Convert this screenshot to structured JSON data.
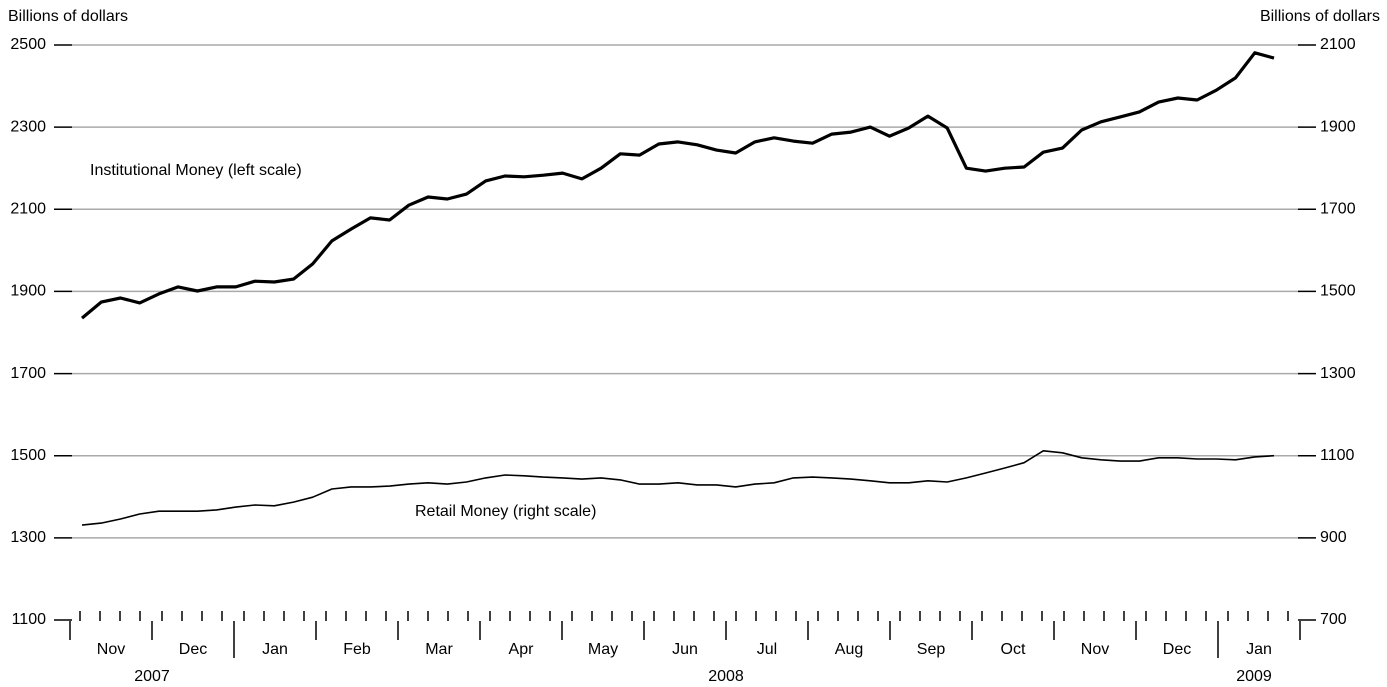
{
  "chart_data": {
    "type": "line",
    "y_label": "Billions of dollars",
    "y2_label": "Billions of dollars",
    "annotations": [
      "Institutional Money (left scale)",
      "Retail Money (right scale)"
    ],
    "categories": [
      null,
      null,
      null,
      null,
      null,
      null,
      null,
      null,
      null,
      null,
      null,
      null,
      null,
      null,
      null,
      null,
      null,
      null,
      null,
      null,
      null,
      null,
      null,
      null,
      null,
      null,
      null,
      null,
      null,
      null,
      null,
      null,
      null,
      null,
      null,
      null,
      null,
      null,
      null,
      null,
      null,
      null,
      null,
      null,
      null,
      null,
      null,
      null,
      null,
      null,
      null,
      null,
      null,
      null,
      null,
      null,
      null,
      null,
      null,
      null,
      null,
      null,
      null
    ],
    "x_months": [
      "Nov",
      "Dec",
      "Jan",
      "Feb",
      "Mar",
      "Apr",
      "May",
      "Jun",
      "Jul",
      "Aug",
      "Sep",
      "Oct",
      "Nov",
      "Dec",
      "Jan"
    ],
    "x_years": [
      "2007",
      "2008",
      "2009"
    ],
    "series": [
      {
        "name": "Institutional Money (left scale)",
        "color": "#000000",
        "axis": "y",
        "values": [
          1835,
          1874,
          1884,
          1872,
          1894,
          1911,
          1901,
          1911,
          1911,
          1925,
          1923,
          1930,
          1967,
          2023,
          2052,
          2079,
          2074,
          2110,
          2130,
          2125,
          2137,
          2169,
          2181,
          2179,
          2183,
          2188,
          2174,
          2200,
          2235,
          2232,
          2259,
          2264,
          2257,
          2244,
          2237,
          2264,
          2274,
          2266,
          2261,
          2283,
          2288,
          2300,
          2278,
          2298,
          2327,
          2298,
          2200,
          2193,
          2200,
          2203,
          2239,
          2249,
          2293,
          2313,
          2325,
          2337,
          2361,
          2371,
          2366,
          2390,
          2420,
          2481,
          2468
        ]
      },
      {
        "name": "Retail Money (right scale)",
        "color": "#000000",
        "axis": "y2",
        "values": [
          931,
          936,
          946,
          958,
          965,
          965,
          965,
          968,
          975,
          980,
          978,
          987,
          999,
          1019,
          1024,
          1024,
          1026,
          1031,
          1034,
          1031,
          1036,
          1046,
          1053,
          1051,
          1048,
          1046,
          1043,
          1046,
          1041,
          1031,
          1031,
          1034,
          1029,
          1029,
          1024,
          1031,
          1034,
          1046,
          1048,
          1046,
          1043,
          1039,
          1034,
          1034,
          1039,
          1036,
          1046,
          1058,
          1070,
          1083,
          1112,
          1107,
          1095,
          1090,
          1087,
          1087,
          1095,
          1095,
          1092,
          1092,
          1090,
          1097,
          1100
        ]
      }
    ],
    "ylim": [
      1100,
      2500
    ],
    "yticks": [
      1100,
      1300,
      1500,
      1700,
      1900,
      2100,
      2300,
      2500
    ],
    "y2lim": [
      700,
      2100
    ],
    "y2ticks": [
      700,
      900,
      1100,
      1300,
      1500,
      1700,
      1900,
      2100
    ],
    "grid": true
  }
}
